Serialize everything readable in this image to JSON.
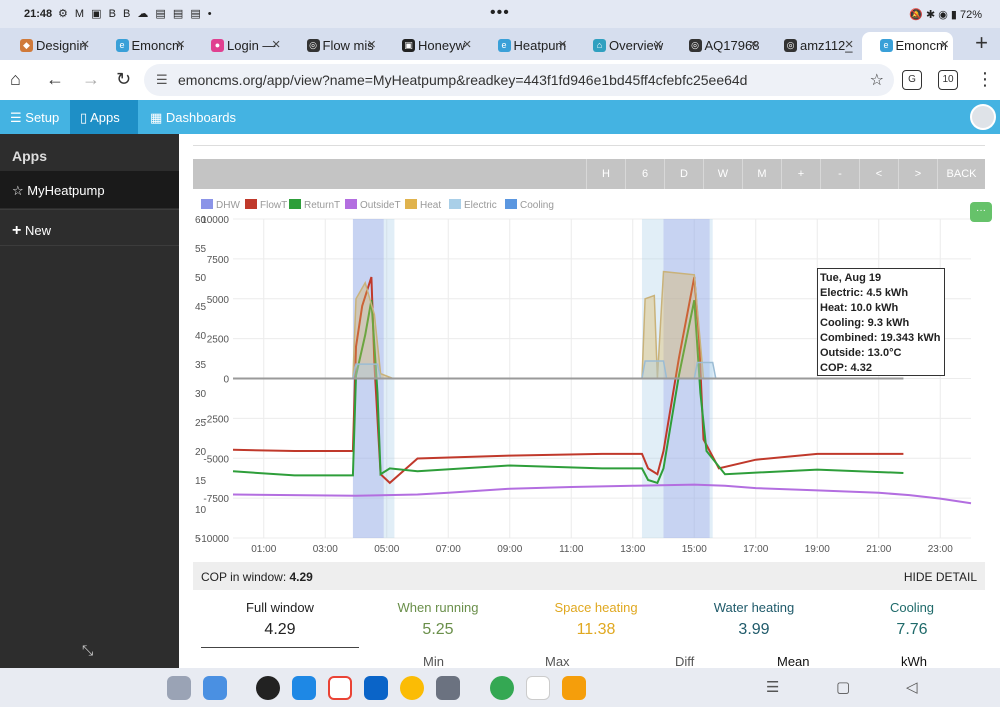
{
  "status": {
    "time": "21:48",
    "left_icons": "⚙ M ▣ B B ☁ ▤ ▤ ▤ •",
    "right": "🔕 ✱ ◉ ▮ 72%"
  },
  "tabs": [
    {
      "label": "Designin",
      "fav_color": "#d07a3a",
      "fav": "◆"
    },
    {
      "label": "Emoncm",
      "fav_color": "#3aa0d8",
      "fav": "e"
    },
    {
      "label": "Login —",
      "fav_color": "#e04090",
      "fav": "●"
    },
    {
      "label": "Flow mis",
      "fav_color": "#333333",
      "fav": "◎"
    },
    {
      "label": "Honeyw",
      "fav_color": "#222222",
      "fav": "▣"
    },
    {
      "label": "Heatpum",
      "fav_color": "#3aa0d8",
      "fav": "e"
    },
    {
      "label": "Overview",
      "fav_color": "#30a0c0",
      "fav": "⌂"
    },
    {
      "label": "AQ17968",
      "fav_color": "#333333",
      "fav": "◎"
    },
    {
      "label": "amz112_",
      "fav_color": "#333333",
      "fav": "◎"
    },
    {
      "label": "Emoncm",
      "fav_color": "#3aa0d8",
      "fav": "e",
      "active": true
    }
  ],
  "address": {
    "url": "emoncms.org/app/view?name=MyHeatpump&readkey=443f1fd946e1bd45ff4cfebfc25ee64d",
    "ext_label": "10"
  },
  "header": {
    "setup": "Setup",
    "apps": "Apps",
    "dashboards": "Dashboards"
  },
  "sidebar": {
    "heading": "Apps",
    "app_item": "☆ MyHeatpump",
    "new_item": "New"
  },
  "timebar": [
    "H",
    "6",
    "D",
    "W",
    "M",
    "+",
    "-",
    "<",
    ">",
    "BACK"
  ],
  "colors": {
    "DHW": "#8b94e8",
    "FlowT": "#c0392b",
    "ReturnT": "#2e9e3a",
    "OutsideT": "#b36ee0",
    "Heat": "#e0b34d",
    "Electric": "#a9cfe8",
    "Cooling": "#5b97e0"
  },
  "chart_data": {
    "type": "line",
    "legend": [
      "DHW",
      "FlowT",
      "ReturnT",
      "OutsideT",
      "Heat",
      "Electric",
      "Cooling"
    ],
    "legend_placement": "top-left",
    "y_left_ticks": [
      60,
      55,
      50,
      45,
      40,
      35,
      30,
      25,
      20,
      15,
      10,
      5
    ],
    "y_right_ticks": [
      10000,
      7500,
      5000,
      2500,
      0,
      -2500,
      -5000,
      -7500,
      -10000
    ],
    "x_ticks": [
      "01:00",
      "03:00",
      "05:00",
      "07:00",
      "09:00",
      "11:00",
      "13:00",
      "15:00",
      "17:00",
      "19:00",
      "21:00",
      "23:00"
    ],
    "xlim": [
      0,
      24
    ],
    "ylim_left": [
      5,
      60
    ],
    "ylim_right": [
      -10000,
      10000
    ],
    "grid": true,
    "dhw_bands": [
      [
        3.9,
        4.9
      ],
      [
        14.0,
        15.5
      ]
    ],
    "electric_bands": [
      [
        3.9,
        5.25
      ],
      [
        13.3,
        15.6
      ]
    ],
    "series": [
      {
        "name": "FlowT",
        "axis": "left",
        "points": [
          [
            0,
            20.2
          ],
          [
            2,
            20.0
          ],
          [
            3.9,
            20.0
          ],
          [
            4.0,
            38
          ],
          [
            4.2,
            45
          ],
          [
            4.5,
            50
          ],
          [
            4.6,
            35
          ],
          [
            4.8,
            16
          ],
          [
            5.1,
            14.5
          ],
          [
            6,
            18.7
          ],
          [
            9,
            19.2
          ],
          [
            12,
            19.5
          ],
          [
            13.3,
            19.5
          ],
          [
            13.5,
            17
          ],
          [
            13.8,
            16
          ],
          [
            14.0,
            20
          ],
          [
            14.5,
            36
          ],
          [
            15.0,
            50
          ],
          [
            15.15,
            40
          ],
          [
            15.3,
            22
          ],
          [
            15.8,
            17
          ],
          [
            17,
            18.5
          ],
          [
            19,
            19.5
          ],
          [
            21.8,
            19.5
          ]
        ]
      },
      {
        "name": "ReturnT",
        "axis": "left",
        "points": [
          [
            0,
            16.5
          ],
          [
            2,
            15.8
          ],
          [
            3.9,
            15.8
          ],
          [
            4.0,
            33
          ],
          [
            4.3,
            40
          ],
          [
            4.5,
            46
          ],
          [
            4.7,
            30
          ],
          [
            4.8,
            16
          ],
          [
            5.1,
            17
          ],
          [
            6,
            16.5
          ],
          [
            9,
            17.5
          ],
          [
            12,
            17
          ],
          [
            13.3,
            17
          ],
          [
            13.5,
            15
          ],
          [
            13.8,
            14.5
          ],
          [
            14.0,
            17
          ],
          [
            14.5,
            33
          ],
          [
            15.0,
            46
          ],
          [
            15.2,
            30
          ],
          [
            15.4,
            20
          ],
          [
            16,
            16
          ],
          [
            19,
            16.8
          ],
          [
            21.8,
            16.2
          ]
        ]
      },
      {
        "name": "OutsideT",
        "axis": "left",
        "points": [
          [
            0,
            12.5
          ],
          [
            4,
            12.3
          ],
          [
            6,
            12.5
          ],
          [
            7,
            12.8
          ],
          [
            9,
            13.5
          ],
          [
            11,
            13.8
          ],
          [
            13,
            14.0
          ],
          [
            15,
            14.2
          ],
          [
            16,
            14.0
          ],
          [
            17,
            13.6
          ],
          [
            19,
            13.2
          ],
          [
            21,
            12.8
          ],
          [
            22,
            12.4
          ],
          [
            23,
            11.8
          ],
          [
            24,
            11.0
          ]
        ]
      },
      {
        "name": "Heat",
        "axis": "right",
        "points": [
          [
            0,
            0
          ],
          [
            3.9,
            0
          ],
          [
            4.0,
            5000
          ],
          [
            4.3,
            6000
          ],
          [
            4.6,
            4000
          ],
          [
            4.8,
            300
          ],
          [
            5.2,
            0
          ],
          [
            13.3,
            0
          ],
          [
            13.4,
            5000
          ],
          [
            13.7,
            5200
          ],
          [
            13.8,
            0
          ],
          [
            14.0,
            6700
          ],
          [
            15.0,
            6500
          ],
          [
            15.3,
            0
          ],
          [
            21.8,
            0
          ]
        ]
      },
      {
        "name": "Electric",
        "axis": "right",
        "points": [
          [
            0,
            0
          ],
          [
            3.9,
            0
          ],
          [
            4.0,
            900
          ],
          [
            4.7,
            900
          ],
          [
            4.8,
            0
          ],
          [
            5.25,
            0
          ],
          [
            13.3,
            0
          ],
          [
            13.4,
            1100
          ],
          [
            14.0,
            1100
          ],
          [
            14.1,
            0
          ],
          [
            15.0,
            0
          ],
          [
            15.1,
            1000
          ],
          [
            15.6,
            1000
          ],
          [
            15.7,
            0
          ],
          [
            21.8,
            0
          ]
        ]
      }
    ]
  },
  "tooltip": {
    "date": "Tue, Aug 19",
    "electric": "Electric: 4.5 kWh",
    "heat": "Heat: 10.0 kWh",
    "cooling": "Cooling: 9.3 kWh",
    "combined": "Combined: 19.343 kWh",
    "outside": "Outside: 13.0°C",
    "cop": "COP: 4.32"
  },
  "cop": {
    "label": "COP in window:",
    "value": "4.29",
    "hide": "HIDE DETAIL"
  },
  "stats": [
    {
      "title": "Full window",
      "value": "4.29",
      "color": "#222222"
    },
    {
      "title": "When running",
      "value": "5.25",
      "color": "#6a8f4a"
    },
    {
      "title": "Space heating",
      "value": "11.38",
      "color": "#e0a820"
    },
    {
      "title": "Water heating",
      "value": "3.99",
      "color": "#1f5a6a"
    },
    {
      "title": "Cooling",
      "value": "7.76",
      "color": "#1f6a6a"
    }
  ],
  "table_headers": [
    "Min",
    "Max",
    "Diff",
    "Mean",
    "kWh"
  ]
}
